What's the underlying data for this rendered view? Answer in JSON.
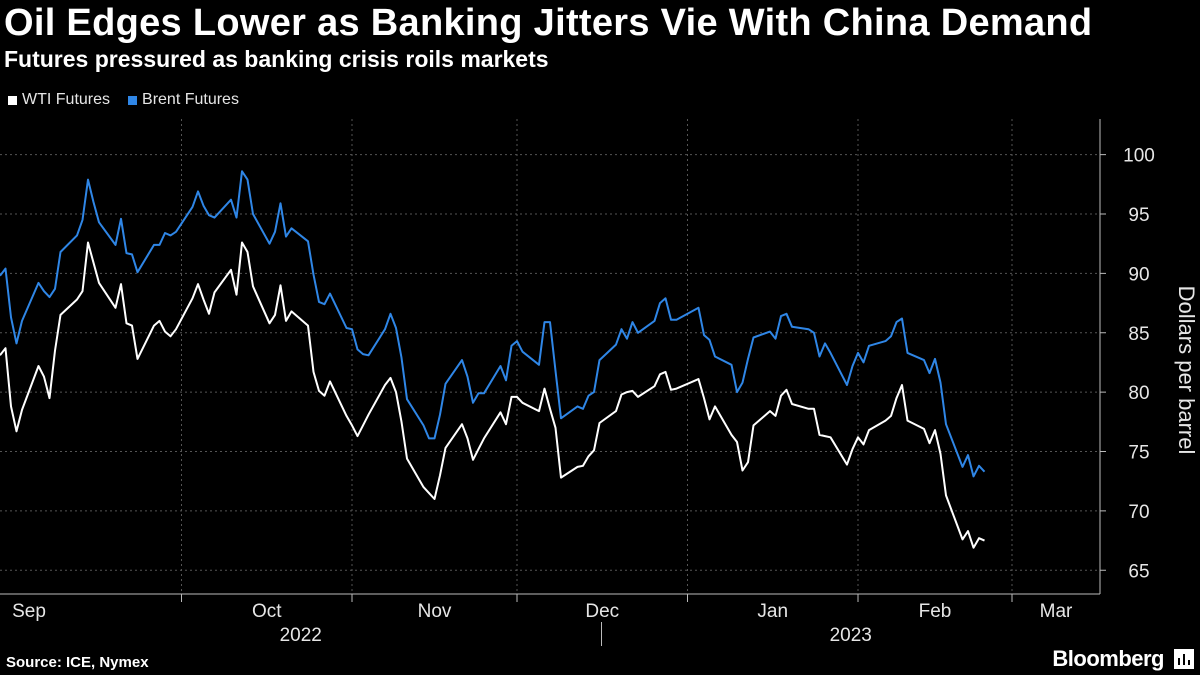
{
  "header": {
    "title": "Oil Edges Lower as Banking Jitters Vie With China Demand",
    "subtitle": "Futures pressured as banking crisis roils markets"
  },
  "footer": {
    "source": "Source: ICE, Nymex",
    "brand": "Bloomberg"
  },
  "colors": {
    "background": "#000000",
    "wti": "#ffffff",
    "brent": "#2f86e6",
    "grid": "#555555"
  },
  "chart_data": {
    "type": "line",
    "title": "Oil Edges Lower as Banking Jitters Vie With China Demand",
    "subtitle": "Futures pressured as banking crisis roils markets",
    "ylabel": "Dollars per barrel",
    "ylim": [
      63,
      103
    ],
    "yticks": [
      65,
      70,
      75,
      80,
      85,
      90,
      95,
      100
    ],
    "grid": true,
    "legend_position": "top-left",
    "x_start": "2022-08-29",
    "x_end": "2023-03-17",
    "month_labels": [
      {
        "label": "Sep",
        "date": "2022-09-01"
      },
      {
        "label": "Oct",
        "date": "2022-10-01"
      },
      {
        "label": "Nov",
        "date": "2022-11-01"
      },
      {
        "label": "Dec",
        "date": "2022-12-01"
      },
      {
        "label": "Jan",
        "date": "2023-01-01"
      },
      {
        "label": "Feb",
        "date": "2023-02-01"
      },
      {
        "label": "Mar",
        "date": "2023-03-01"
      }
    ],
    "year_labels": [
      "2022",
      "2023"
    ],
    "series": [
      {
        "name": "WTI Futures",
        "points": [
          [
            "2022-08-29",
            83.1
          ],
          [
            "2022-08-30",
            83.7
          ],
          [
            "2022-08-31",
            78.8
          ],
          [
            "2022-09-01",
            76.7
          ],
          [
            "2022-09-02",
            78.5
          ],
          [
            "2022-09-05",
            82.2
          ],
          [
            "2022-09-06",
            81.3
          ],
          [
            "2022-09-07",
            79.5
          ],
          [
            "2022-09-08",
            83.5
          ],
          [
            "2022-09-09",
            86.5
          ],
          [
            "2022-09-12",
            87.8
          ],
          [
            "2022-09-13",
            88.5
          ],
          [
            "2022-09-14",
            92.6
          ],
          [
            "2022-09-15",
            90.9
          ],
          [
            "2022-09-16",
            89.2
          ],
          [
            "2022-09-19",
            87.1
          ],
          [
            "2022-09-20",
            89.1
          ],
          [
            "2022-09-21",
            85.8
          ],
          [
            "2022-09-22",
            85.6
          ],
          [
            "2022-09-23",
            82.8
          ],
          [
            "2022-09-26",
            85.6
          ],
          [
            "2022-09-27",
            86.0
          ],
          [
            "2022-09-28",
            85.1
          ],
          [
            "2022-09-29",
            84.7
          ],
          [
            "2022-09-30",
            85.3
          ],
          [
            "2022-10-03",
            87.9
          ],
          [
            "2022-10-04",
            89.1
          ],
          [
            "2022-10-05",
            87.8
          ],
          [
            "2022-10-06",
            86.6
          ],
          [
            "2022-10-07",
            88.4
          ],
          [
            "2022-10-10",
            90.3
          ],
          [
            "2022-10-11",
            88.2
          ],
          [
            "2022-10-12",
            92.6
          ],
          [
            "2022-10-13",
            91.8
          ],
          [
            "2022-10-14",
            88.9
          ],
          [
            "2022-10-17",
            85.8
          ],
          [
            "2022-10-18",
            86.5
          ],
          [
            "2022-10-19",
            89.0
          ],
          [
            "2022-10-20",
            86.0
          ],
          [
            "2022-10-21",
            86.8
          ],
          [
            "2022-10-24",
            85.6
          ],
          [
            "2022-10-25",
            81.7
          ],
          [
            "2022-10-26",
            80.1
          ],
          [
            "2022-10-27",
            79.7
          ],
          [
            "2022-10-28",
            80.9
          ],
          [
            "2022-10-31",
            78.0
          ],
          [
            "2022-11-01",
            77.2
          ],
          [
            "2022-11-02",
            76.3
          ],
          [
            "2022-11-03",
            77.2
          ],
          [
            "2022-11-04",
            78.1
          ],
          [
            "2022-11-07",
            80.6
          ],
          [
            "2022-11-08",
            81.2
          ],
          [
            "2022-11-09",
            80.0
          ],
          [
            "2022-11-10",
            77.5
          ],
          [
            "2022-11-11",
            74.4
          ],
          [
            "2022-11-14",
            72.0
          ],
          [
            "2022-11-15",
            71.5
          ],
          [
            "2022-11-16",
            71.0
          ],
          [
            "2022-11-17",
            73.0
          ],
          [
            "2022-11-18",
            75.3
          ],
          [
            "2022-11-21",
            77.3
          ],
          [
            "2022-11-22",
            76.1
          ],
          [
            "2022-11-23",
            74.3
          ],
          [
            "2022-11-24",
            75.2
          ],
          [
            "2022-11-25",
            76.1
          ],
          [
            "2022-11-28",
            78.3
          ],
          [
            "2022-11-29",
            77.3
          ],
          [
            "2022-11-30",
            79.6
          ],
          [
            "2022-12-01",
            79.6
          ],
          [
            "2022-12-02",
            79.1
          ],
          [
            "2022-12-05",
            78.4
          ],
          [
            "2022-12-06",
            80.3
          ],
          [
            "2022-12-07",
            78.6
          ],
          [
            "2022-12-08",
            77.0
          ],
          [
            "2022-12-09",
            72.8
          ],
          [
            "2022-12-12",
            73.7
          ],
          [
            "2022-12-13",
            73.8
          ],
          [
            "2022-12-14",
            74.6
          ],
          [
            "2022-12-15",
            75.1
          ],
          [
            "2022-12-16",
            77.4
          ],
          [
            "2022-12-19",
            78.4
          ],
          [
            "2022-12-20",
            79.8
          ],
          [
            "2022-12-21",
            80.0
          ],
          [
            "2022-12-22",
            80.1
          ],
          [
            "2022-12-23",
            79.6
          ],
          [
            "2022-12-26",
            80.5
          ],
          [
            "2022-12-27",
            81.5
          ],
          [
            "2022-12-28",
            81.7
          ],
          [
            "2022-12-29",
            80.2
          ],
          [
            "2022-12-30",
            80.3
          ],
          [
            "2023-01-03",
            81.1
          ],
          [
            "2023-01-04",
            79.5
          ],
          [
            "2023-01-05",
            77.7
          ],
          [
            "2023-01-06",
            78.8
          ],
          [
            "2023-01-09",
            76.4
          ],
          [
            "2023-01-10",
            75.8
          ],
          [
            "2023-01-11",
            73.4
          ],
          [
            "2023-01-12",
            74.1
          ],
          [
            "2023-01-13",
            77.2
          ],
          [
            "2023-01-16",
            78.4
          ],
          [
            "2023-01-17",
            78.0
          ],
          [
            "2023-01-18",
            79.7
          ],
          [
            "2023-01-19",
            80.2
          ],
          [
            "2023-01-20",
            79.0
          ],
          [
            "2023-01-23",
            78.6
          ],
          [
            "2023-01-24",
            78.6
          ],
          [
            "2023-01-25",
            76.4
          ],
          [
            "2023-01-26",
            76.3
          ],
          [
            "2023-01-27",
            76.2
          ],
          [
            "2023-01-30",
            73.9
          ],
          [
            "2023-01-31",
            75.2
          ],
          [
            "2023-02-01",
            76.2
          ],
          [
            "2023-02-02",
            75.6
          ],
          [
            "2023-02-03",
            76.8
          ],
          [
            "2023-02-06",
            77.6
          ],
          [
            "2023-02-07",
            78.0
          ],
          [
            "2023-02-08",
            79.5
          ],
          [
            "2023-02-09",
            80.6
          ],
          [
            "2023-02-10",
            77.6
          ],
          [
            "2023-02-13",
            76.9
          ],
          [
            "2023-02-14",
            75.7
          ],
          [
            "2023-02-15",
            76.8
          ],
          [
            "2023-02-16",
            74.8
          ],
          [
            "2023-02-17",
            71.3
          ],
          [
            "2023-02-20",
            67.6
          ],
          [
            "2023-02-21",
            68.3
          ],
          [
            "2023-02-22",
            66.9
          ],
          [
            "2023-02-23",
            67.7
          ],
          [
            "2023-02-24",
            67.5
          ]
        ]
      },
      {
        "name": "Brent Futures",
        "points": [
          [
            "2022-08-29",
            89.8
          ],
          [
            "2022-08-30",
            90.4
          ],
          [
            "2022-08-31",
            86.3
          ],
          [
            "2022-09-01",
            84.1
          ],
          [
            "2022-09-02",
            86.0
          ],
          [
            "2022-09-05",
            89.2
          ],
          [
            "2022-09-06",
            88.5
          ],
          [
            "2022-09-07",
            88.0
          ],
          [
            "2022-09-08",
            88.7
          ],
          [
            "2022-09-09",
            91.8
          ],
          [
            "2022-09-12",
            93.2
          ],
          [
            "2022-09-13",
            94.5
          ],
          [
            "2022-09-14",
            97.9
          ],
          [
            "2022-09-15",
            96.0
          ],
          [
            "2022-09-16",
            94.3
          ],
          [
            "2022-09-19",
            92.4
          ],
          [
            "2022-09-20",
            94.6
          ],
          [
            "2022-09-21",
            91.7
          ],
          [
            "2022-09-22",
            91.6
          ],
          [
            "2022-09-23",
            90.1
          ],
          [
            "2022-09-26",
            92.4
          ],
          [
            "2022-09-27",
            92.4
          ],
          [
            "2022-09-28",
            93.4
          ],
          [
            "2022-09-29",
            93.2
          ],
          [
            "2022-09-30",
            93.5
          ],
          [
            "2022-10-03",
            95.6
          ],
          [
            "2022-10-04",
            96.9
          ],
          [
            "2022-10-05",
            95.7
          ],
          [
            "2022-10-06",
            94.9
          ],
          [
            "2022-10-07",
            94.7
          ],
          [
            "2022-10-10",
            96.2
          ],
          [
            "2022-10-11",
            94.7
          ],
          [
            "2022-10-12",
            98.6
          ],
          [
            "2022-10-13",
            97.9
          ],
          [
            "2022-10-14",
            95.0
          ],
          [
            "2022-10-17",
            92.5
          ],
          [
            "2022-10-18",
            93.5
          ],
          [
            "2022-10-19",
            95.9
          ],
          [
            "2022-10-20",
            93.1
          ],
          [
            "2022-10-21",
            93.8
          ],
          [
            "2022-10-24",
            92.7
          ],
          [
            "2022-10-25",
            89.9
          ],
          [
            "2022-10-26",
            87.6
          ],
          [
            "2022-10-27",
            87.4
          ],
          [
            "2022-10-28",
            88.3
          ],
          [
            "2022-10-31",
            85.4
          ],
          [
            "2022-11-01",
            85.3
          ],
          [
            "2022-11-02",
            83.6
          ],
          [
            "2022-11-03",
            83.2
          ],
          [
            "2022-11-04",
            83.1
          ],
          [
            "2022-11-07",
            85.3
          ],
          [
            "2022-11-08",
            86.6
          ],
          [
            "2022-11-09",
            85.4
          ],
          [
            "2022-11-10",
            82.9
          ],
          [
            "2022-11-11",
            79.4
          ],
          [
            "2022-11-14",
            77.2
          ],
          [
            "2022-11-15",
            76.1
          ],
          [
            "2022-11-16",
            76.1
          ],
          [
            "2022-11-17",
            78.1
          ],
          [
            "2022-11-18",
            80.7
          ],
          [
            "2022-11-21",
            82.7
          ],
          [
            "2022-11-22",
            81.3
          ],
          [
            "2022-11-23",
            79.1
          ],
          [
            "2022-11-24",
            79.9
          ],
          [
            "2022-11-25",
            79.9
          ],
          [
            "2022-11-28",
            82.2
          ],
          [
            "2022-11-29",
            81.0
          ],
          [
            "2022-11-30",
            83.9
          ],
          [
            "2022-12-01",
            84.3
          ],
          [
            "2022-12-02",
            83.4
          ],
          [
            "2022-12-05",
            82.3
          ],
          [
            "2022-12-06",
            85.9
          ],
          [
            "2022-12-07",
            85.9
          ],
          [
            "2022-12-08",
            81.8
          ],
          [
            "2022-12-09",
            77.8
          ],
          [
            "2022-12-12",
            78.8
          ],
          [
            "2022-12-13",
            78.6
          ],
          [
            "2022-12-14",
            79.7
          ],
          [
            "2022-12-15",
            80.0
          ],
          [
            "2022-12-16",
            82.7
          ],
          [
            "2022-12-19",
            84.0
          ],
          [
            "2022-12-20",
            85.3
          ],
          [
            "2022-12-21",
            84.5
          ],
          [
            "2022-12-22",
            85.9
          ],
          [
            "2022-12-23",
            85.0
          ],
          [
            "2022-12-26",
            86.0
          ],
          [
            "2022-12-27",
            87.5
          ],
          [
            "2022-12-28",
            87.9
          ],
          [
            "2022-12-29",
            86.1
          ],
          [
            "2022-12-30",
            86.1
          ],
          [
            "2023-01-03",
            87.1
          ],
          [
            "2023-01-04",
            84.8
          ],
          [
            "2023-01-05",
            84.4
          ],
          [
            "2023-01-06",
            83.0
          ],
          [
            "2023-01-09",
            82.3
          ],
          [
            "2023-01-10",
            80.0
          ],
          [
            "2023-01-11",
            80.8
          ],
          [
            "2023-01-12",
            82.8
          ],
          [
            "2023-01-13",
            84.6
          ],
          [
            "2023-01-16",
            85.1
          ],
          [
            "2023-01-17",
            84.5
          ],
          [
            "2023-01-18",
            86.4
          ],
          [
            "2023-01-19",
            86.6
          ],
          [
            "2023-01-20",
            85.5
          ],
          [
            "2023-01-23",
            85.3
          ],
          [
            "2023-01-24",
            85.0
          ],
          [
            "2023-01-25",
            83.0
          ],
          [
            "2023-01-26",
            84.1
          ],
          [
            "2023-01-27",
            83.3
          ],
          [
            "2023-01-30",
            80.6
          ],
          [
            "2023-01-31",
            82.2
          ],
          [
            "2023-02-01",
            83.3
          ],
          [
            "2023-02-02",
            82.5
          ],
          [
            "2023-02-03",
            83.9
          ],
          [
            "2023-02-06",
            84.3
          ],
          [
            "2023-02-07",
            84.7
          ],
          [
            "2023-02-08",
            85.9
          ],
          [
            "2023-02-09",
            86.2
          ],
          [
            "2023-02-10",
            83.3
          ],
          [
            "2023-02-13",
            82.7
          ],
          [
            "2023-02-14",
            81.6
          ],
          [
            "2023-02-15",
            82.8
          ],
          [
            "2023-02-16",
            80.8
          ],
          [
            "2023-02-17",
            77.3
          ],
          [
            "2023-02-20",
            73.7
          ],
          [
            "2023-02-21",
            74.7
          ],
          [
            "2023-02-22",
            72.9
          ],
          [
            "2023-02-23",
            73.8
          ],
          [
            "2023-02-24",
            73.3
          ]
        ]
      }
    ]
  }
}
